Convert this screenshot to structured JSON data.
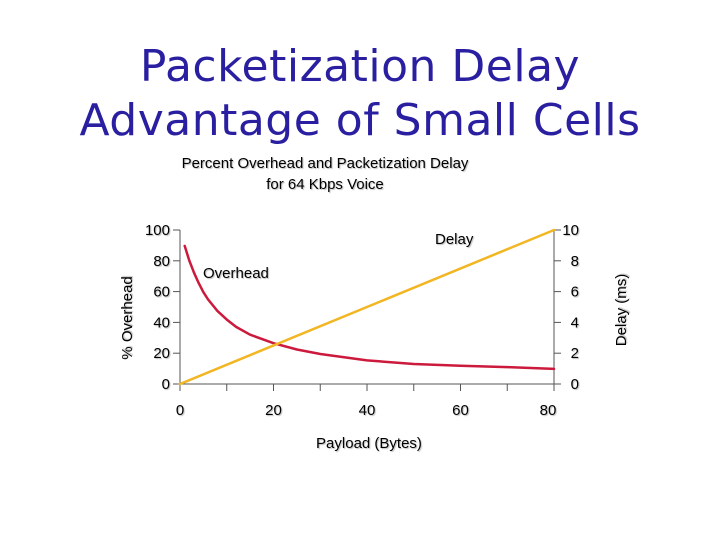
{
  "slide": {
    "title_line1": "Packetization Delay",
    "title_line2": "Advantage of Small Cells",
    "title_color": "#2a1fa0"
  },
  "chart_data": {
    "type": "line",
    "title": "Percent Overhead and Packetization Delay",
    "subtitle": "for 64 Kbps Voice",
    "xlabel": "Payload (Bytes)",
    "ylabel_left": "% Overhead",
    "ylabel_right": "Delay (ms)",
    "xlim": [
      0,
      80
    ],
    "ylim_left": [
      0,
      100
    ],
    "ylim_right": [
      0,
      10
    ],
    "x_ticks": [
      "0",
      "20",
      "40",
      "60",
      "80"
    ],
    "y_left_ticks": [
      "0",
      "20",
      "40",
      "60",
      "80",
      "100"
    ],
    "y_right_ticks": [
      "0",
      "2",
      "4",
      "6",
      "8",
      "10"
    ],
    "grid": false,
    "series": [
      {
        "name": "Overhead",
        "axis": "left",
        "color": "#cc1a3c",
        "x": [
          1,
          2,
          3,
          4,
          5,
          6,
          8,
          10,
          12,
          15,
          20,
          25,
          30,
          40,
          50,
          60,
          70,
          80
        ],
        "y": [
          89.7,
          80.1,
          72.3,
          65.5,
          59.6,
          54.9,
          47.5,
          41.8,
          37.1,
          32.0,
          26.5,
          22.4,
          19.5,
          15.3,
          13.0,
          11.8,
          11.0,
          9.8
        ]
      },
      {
        "name": "Delay",
        "axis": "right",
        "color": "#f2b623",
        "x": [
          0,
          80
        ],
        "y": [
          0,
          10
        ]
      }
    ]
  }
}
